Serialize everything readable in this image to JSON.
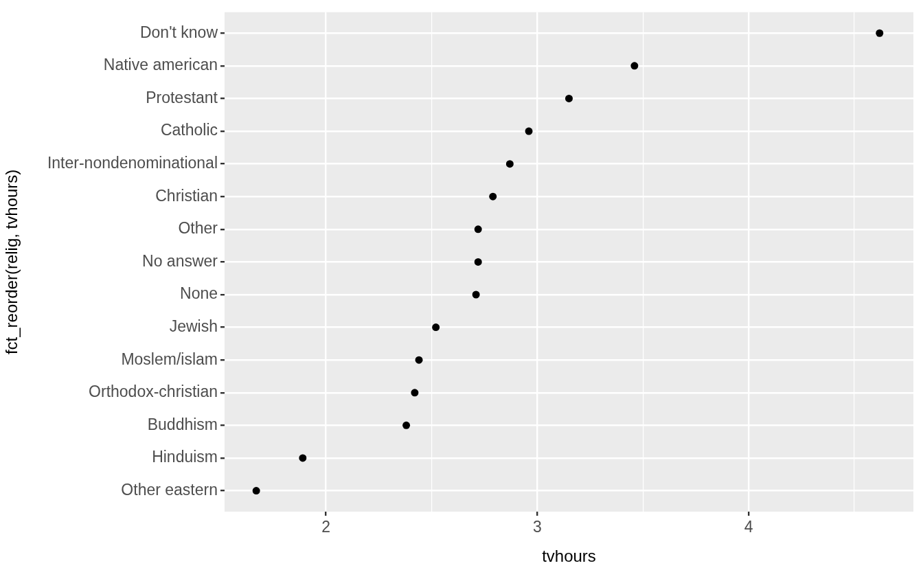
{
  "chart_data": {
    "type": "scatter",
    "orientation": "horizontal",
    "xlabel": "tvhours",
    "ylabel": "fct_reorder(relig, tvhours)",
    "categories": [
      "Don't know",
      "Native american",
      "Protestant",
      "Catholic",
      "Inter-nondenominational",
      "Christian",
      "Other",
      "No answer",
      "None",
      "Jewish",
      "Moslem/islam",
      "Orthodox-christian",
      "Buddhism",
      "Hinduism",
      "Other eastern"
    ],
    "series": [
      {
        "color": "#000000",
        "values": [
          4.62,
          3.46,
          3.15,
          2.96,
          2.87,
          2.79,
          2.72,
          2.72,
          2.71,
          2.52,
          2.44,
          2.42,
          2.38,
          1.89,
          1.67
        ]
      }
    ],
    "xlim": [
      1.52,
      4.78
    ],
    "xticks": [
      2,
      {
        "value": 2.5,
        "label": null
      },
      3,
      {
        "value": 3.5,
        "label": null
      },
      4,
      {
        "value": 4.5,
        "label": null
      }
    ],
    "grid": true,
    "marker": "circle",
    "legend": false
  }
}
